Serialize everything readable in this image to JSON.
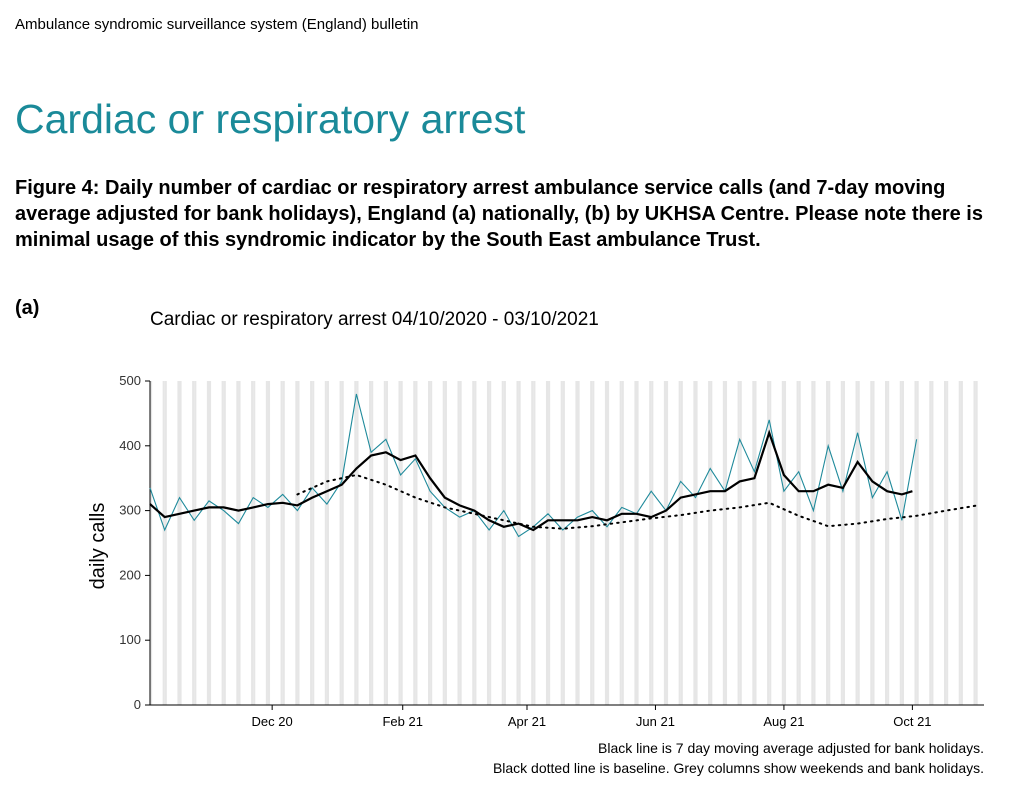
{
  "header": {
    "bulletin": "Ambulance syndromic surveillance system (England) bulletin",
    "title": "Cardiac or respiratory arrest",
    "caption": "Figure 4: Daily number of cardiac or respiratory arrest ambulance service calls (and 7-day moving average adjusted for bank holidays), England (a) nationally, (b) by UKHSA Centre. Please note there is minimal usage of this syndromic indicator by the South East ambulance Trust.",
    "panel_label": "(a)"
  },
  "footnotes": {
    "line1": "Black line is 7 day moving average adjusted for bank holidays.",
    "line2": "Black dotted line is baseline. Grey columns show weekends and bank holidays."
  },
  "chart_data": {
    "type": "line",
    "title": "Cardiac or respiratory arrest 04/10/2020 - 03/10/2021",
    "xlabel": "",
    "ylabel": "daily calls",
    "ylim": [
      0,
      500
    ],
    "yticks": [
      0,
      100,
      200,
      300,
      400,
      500
    ],
    "xlim": [
      "2020-10-04",
      "2021-11-04"
    ],
    "xticks": [
      {
        "date": "2020-12-01",
        "label": "Dec 20"
      },
      {
        "date": "2021-02-01",
        "label": "Feb 21"
      },
      {
        "date": "2021-04-01",
        "label": "Apr 21"
      },
      {
        "date": "2021-06-01",
        "label": "Jun 21"
      },
      {
        "date": "2021-08-01",
        "label": "Aug 21"
      },
      {
        "date": "2021-10-01",
        "label": "Oct 21"
      }
    ],
    "grid": false,
    "shading": "weekends and bank holidays",
    "colors": {
      "daily": "#1f8a9b",
      "average": "#000000",
      "baseline": "#000000",
      "shading": "#e6e6e6"
    },
    "series": [
      {
        "name": "Daily calls",
        "style": "thin teal line",
        "x": [
          "2020-10-04",
          "2020-10-11",
          "2020-10-18",
          "2020-10-25",
          "2020-11-01",
          "2020-11-08",
          "2020-11-15",
          "2020-11-22",
          "2020-11-29",
          "2020-12-06",
          "2020-12-13",
          "2020-12-20",
          "2020-12-27",
          "2021-01-03",
          "2021-01-10",
          "2021-01-17",
          "2021-01-24",
          "2021-01-31",
          "2021-02-07",
          "2021-02-14",
          "2021-02-21",
          "2021-02-28",
          "2021-03-07",
          "2021-03-14",
          "2021-03-21",
          "2021-03-28",
          "2021-04-04",
          "2021-04-11",
          "2021-04-18",
          "2021-04-25",
          "2021-05-02",
          "2021-05-09",
          "2021-05-16",
          "2021-05-23",
          "2021-05-30",
          "2021-06-06",
          "2021-06-13",
          "2021-06-20",
          "2021-06-27",
          "2021-07-04",
          "2021-07-11",
          "2021-07-18",
          "2021-07-25",
          "2021-08-01",
          "2021-08-08",
          "2021-08-15",
          "2021-08-22",
          "2021-08-29",
          "2021-09-05",
          "2021-09-12",
          "2021-09-19",
          "2021-09-26",
          "2021-10-03"
        ],
        "values": [
          335,
          270,
          320,
          285,
          315,
          300,
          280,
          320,
          305,
          325,
          300,
          335,
          310,
          345,
          480,
          390,
          410,
          355,
          380,
          330,
          305,
          290,
          300,
          270,
          300,
          260,
          275,
          295,
          270,
          290,
          300,
          275,
          305,
          295,
          330,
          300,
          345,
          320,
          365,
          330,
          410,
          360,
          440,
          330,
          360,
          300,
          400,
          330,
          420,
          320,
          360,
          285,
          410
        ]
      },
      {
        "name": "7 day moving average",
        "style": "solid black line",
        "x": [
          "2020-10-04",
          "2020-10-11",
          "2020-10-18",
          "2020-10-25",
          "2020-11-01",
          "2020-11-08",
          "2020-11-15",
          "2020-11-22",
          "2020-11-29",
          "2020-12-06",
          "2020-12-13",
          "2020-12-20",
          "2020-12-27",
          "2021-01-03",
          "2021-01-10",
          "2021-01-17",
          "2021-01-24",
          "2021-01-31",
          "2021-02-07",
          "2021-02-14",
          "2021-02-21",
          "2021-02-28",
          "2021-03-07",
          "2021-03-14",
          "2021-03-21",
          "2021-03-28",
          "2021-04-04",
          "2021-04-11",
          "2021-04-18",
          "2021-04-25",
          "2021-05-02",
          "2021-05-09",
          "2021-05-16",
          "2021-05-23",
          "2021-05-30",
          "2021-06-06",
          "2021-06-13",
          "2021-06-20",
          "2021-06-27",
          "2021-07-04",
          "2021-07-11",
          "2021-07-18",
          "2021-07-25",
          "2021-08-01",
          "2021-08-08",
          "2021-08-15",
          "2021-08-22",
          "2021-08-29",
          "2021-09-05",
          "2021-09-12",
          "2021-09-19",
          "2021-09-26",
          "2021-10-01"
        ],
        "values": [
          310,
          290,
          295,
          300,
          305,
          305,
          300,
          305,
          310,
          312,
          308,
          320,
          330,
          340,
          365,
          385,
          390,
          378,
          385,
          350,
          320,
          308,
          300,
          285,
          275,
          280,
          270,
          285,
          285,
          285,
          290,
          285,
          295,
          295,
          290,
          300,
          320,
          325,
          330,
          330,
          345,
          350,
          420,
          355,
          330,
          330,
          340,
          335,
          375,
          345,
          330,
          325,
          330
        ]
      },
      {
        "name": "Baseline",
        "style": "dotted black line",
        "x": [
          "2020-12-13",
          "2020-12-27",
          "2021-01-10",
          "2021-01-24",
          "2021-02-07",
          "2021-02-21",
          "2021-03-07",
          "2021-03-21",
          "2021-04-04",
          "2021-04-18",
          "2021-05-02",
          "2021-05-16",
          "2021-05-30",
          "2021-06-13",
          "2021-06-27",
          "2021-07-11",
          "2021-07-25",
          "2021-08-08",
          "2021-08-22",
          "2021-09-05",
          "2021-09-19",
          "2021-10-03",
          "2021-10-17",
          "2021-11-01"
        ],
        "values": [
          325,
          345,
          355,
          340,
          320,
          305,
          295,
          285,
          275,
          272,
          276,
          282,
          288,
          293,
          300,
          305,
          312,
          292,
          276,
          280,
          287,
          292,
          300,
          308
        ]
      }
    ]
  }
}
